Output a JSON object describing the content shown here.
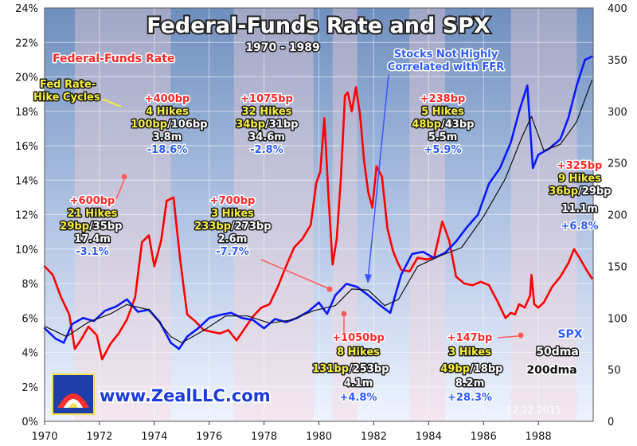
{
  "chart_data": {
    "type": "line",
    "title": "Federal-Funds Rate and SPX",
    "subtitle": "1970 - 1989",
    "x_ticks": [
      "1970",
      "1972",
      "1974",
      "1976",
      "1978",
      "1980",
      "1982",
      "1984",
      "1986",
      "1988"
    ],
    "xlim": [
      1970,
      1990
    ],
    "ylim_left": [
      0,
      24
    ],
    "ylim_right": [
      0,
      400
    ],
    "y_left_ticks": [
      "0%",
      "2%",
      "4%",
      "6%",
      "8%",
      "10%",
      "12%",
      "14%",
      "16%",
      "18%",
      "20%",
      "22%",
      "24%"
    ],
    "y_right_ticks": [
      "0",
      "50",
      "100",
      "150",
      "200",
      "250",
      "300",
      "350",
      "400"
    ],
    "grid": true,
    "series": [
      {
        "name": "Federal-Funds Rate",
        "axis": "left",
        "color": "#ff0000",
        "x": [
          1970.0,
          1970.3,
          1970.6,
          1970.9,
          1971.1,
          1971.35,
          1971.6,
          1971.9,
          1972.1,
          1972.4,
          1972.7,
          1973.0,
          1973.3,
          1973.55,
          1973.8,
          1974.0,
          1974.25,
          1974.45,
          1974.7,
          1974.95,
          1975.2,
          1975.5,
          1975.8,
          1976.1,
          1976.4,
          1976.7,
          1977.0,
          1977.3,
          1977.6,
          1977.9,
          1978.2,
          1978.5,
          1978.8,
          1979.1,
          1979.4,
          1979.7,
          1979.9,
          1980.05,
          1980.2,
          1980.35,
          1980.5,
          1980.65,
          1980.8,
          1980.95,
          1981.05,
          1981.2,
          1981.35,
          1981.5,
          1981.65,
          1981.8,
          1981.95,
          1982.1,
          1982.3,
          1982.5,
          1982.7,
          1982.85,
          1983.0,
          1983.3,
          1983.6,
          1983.9,
          1984.2,
          1984.5,
          1984.75,
          1985.0,
          1985.3,
          1985.6,
          1985.9,
          1986.2,
          1986.5,
          1986.8,
          1987.0,
          1987.15,
          1987.3,
          1987.5,
          1987.7,
          1987.75,
          1987.85,
          1988.0,
          1988.2,
          1988.5,
          1988.8,
          1989.1,
          1989.3,
          1989.5,
          1989.75,
          1989.95
        ],
        "y": [
          9.0,
          8.5,
          7.2,
          6.2,
          4.2,
          4.8,
          5.5,
          5.0,
          3.6,
          4.5,
          5.1,
          5.9,
          7.2,
          10.4,
          10.8,
          9.0,
          10.5,
          12.8,
          13.0,
          9.3,
          6.2,
          5.8,
          5.3,
          5.2,
          5.1,
          5.3,
          4.7,
          5.4,
          6.1,
          6.6,
          6.8,
          7.8,
          9.0,
          10.1,
          10.6,
          11.4,
          13.8,
          14.5,
          17.6,
          13.0,
          9.1,
          10.6,
          14.1,
          18.9,
          19.1,
          18.0,
          19.4,
          17.8,
          15.1,
          13.3,
          12.4,
          14.8,
          14.2,
          11.2,
          9.9,
          9.3,
          8.8,
          8.7,
          9.5,
          9.4,
          9.5,
          11.6,
          10.5,
          8.4,
          8.0,
          7.9,
          8.1,
          7.9,
          7.0,
          6.0,
          6.3,
          6.2,
          6.8,
          6.6,
          7.3,
          8.5,
          6.8,
          6.6,
          6.9,
          7.8,
          8.4,
          9.2,
          10.0,
          9.5,
          8.8,
          8.3
        ]
      },
      {
        "name": "SPX",
        "axis": "right",
        "color": "#0a1aff",
        "x": [
          1970.0,
          1970.4,
          1970.7,
          1971.0,
          1971.4,
          1971.8,
          1972.2,
          1972.6,
          1973.0,
          1973.4,
          1973.8,
          1974.2,
          1974.6,
          1974.9,
          1975.2,
          1975.6,
          1976.0,
          1976.4,
          1976.8,
          1977.2,
          1977.6,
          1978.0,
          1978.4,
          1978.8,
          1979.2,
          1979.6,
          1980.0,
          1980.3,
          1980.6,
          1981.0,
          1981.4,
          1981.8,
          1982.2,
          1982.6,
          1983.0,
          1983.4,
          1983.8,
          1984.2,
          1984.6,
          1985.0,
          1985.4,
          1985.8,
          1986.2,
          1986.6,
          1987.0,
          1987.3,
          1987.6,
          1987.8,
          1988.0,
          1988.4,
          1988.8,
          1989.1,
          1989.4,
          1989.7,
          1989.95
        ],
        "y": [
          90,
          80,
          76,
          94,
          100,
          97,
          107,
          111,
          118,
          106,
          108,
          96,
          76,
          70,
          82,
          90,
          100,
          103,
          105,
          100,
          98,
          90,
          99,
          96,
          100,
          106,
          115,
          104,
          122,
          133,
          130,
          122,
          113,
          105,
          142,
          162,
          164,
          158,
          163,
          174,
          188,
          200,
          230,
          245,
          270,
          300,
          325,
          245,
          258,
          264,
          273,
          294,
          325,
          350,
          353
        ]
      },
      {
        "name": "50dma",
        "axis": "right",
        "color": "#111111",
        "x": [
          1970.0,
          1970.8,
          1971.6,
          1972.4,
          1973.0,
          1973.8,
          1974.6,
          1975.0,
          1975.8,
          1976.6,
          1977.4,
          1978.2,
          1979.0,
          1979.8,
          1980.6,
          1981.2,
          1981.8,
          1982.4,
          1982.9,
          1983.6,
          1984.4,
          1985.2,
          1986.0,
          1986.8,
          1987.4,
          1987.75,
          1988.2,
          1988.8,
          1989.4,
          1989.95
        ],
        "y": [
          92,
          82,
          96,
          104,
          113,
          108,
          82,
          76,
          88,
          102,
          102,
          95,
          98,
          107,
          112,
          128,
          127,
          112,
          118,
          150,
          160,
          168,
          198,
          235,
          275,
          295,
          262,
          268,
          290,
          330
        ]
      }
    ],
    "annotations": {
      "legend_ffr": "Federal-Funds Rate",
      "fed_hikes_label_1": "Fed Rate-",
      "fed_hikes_label_2": "Hike Cycles",
      "stocks_note_1": "Stocks Not Highly",
      "stocks_note_2": "Correlated with FFR",
      "cycles": [
        {
          "bp": "+400bp",
          "hikes": "4 Hikes",
          "avg_a": "100bp",
          "avg_b": "/106bp",
          "dur": "3.8m",
          "pct": "-18.6%"
        },
        {
          "bp": "+1075bp",
          "hikes": "32 Hikes",
          "avg_a": "34bp",
          "avg_b": "/31bp",
          "dur": "34.6m",
          "pct": "-2.8%"
        },
        {
          "bp": "+238bp",
          "hikes": "5 Hikes",
          "avg_a": "48bp",
          "avg_b": "/43bp",
          "dur": "5.5m",
          "pct": "+5.9%"
        },
        {
          "bp": "+600bp",
          "hikes": "21 Hikes",
          "avg_a": "29bp",
          "avg_b": "/35bp",
          "dur": "17.4m",
          "pct": "-3.1%"
        },
        {
          "bp": "+700bp",
          "hikes": "3 Hikes",
          "avg_a": "233bp",
          "avg_b": "/273bp",
          "dur": "2.6m",
          "pct": "-7.7%"
        },
        {
          "bp": "+325bp",
          "hikes": "9 Hikes",
          "avg_a": "36bp",
          "avg_b": "/29bp",
          "dur": "11.1m",
          "pct": "+6.8%"
        },
        {
          "bp": "+1050bp",
          "hikes": "8 Hikes",
          "avg_a": "131bp",
          "avg_b": "/253bp",
          "dur": "4.1m",
          "pct": "+4.8%"
        },
        {
          "bp": "+147bp",
          "hikes": "3 Hikes",
          "avg_a": "49bp",
          "avg_b": "/18bp",
          "dur": "8.2m",
          "pct": "+28.3%"
        }
      ],
      "spx_legend": "SPX",
      "dma50_legend": "50dma",
      "dma200_legend": "200dma",
      "website": "www.ZealLLC.com",
      "date": "12.22.2015"
    }
  }
}
